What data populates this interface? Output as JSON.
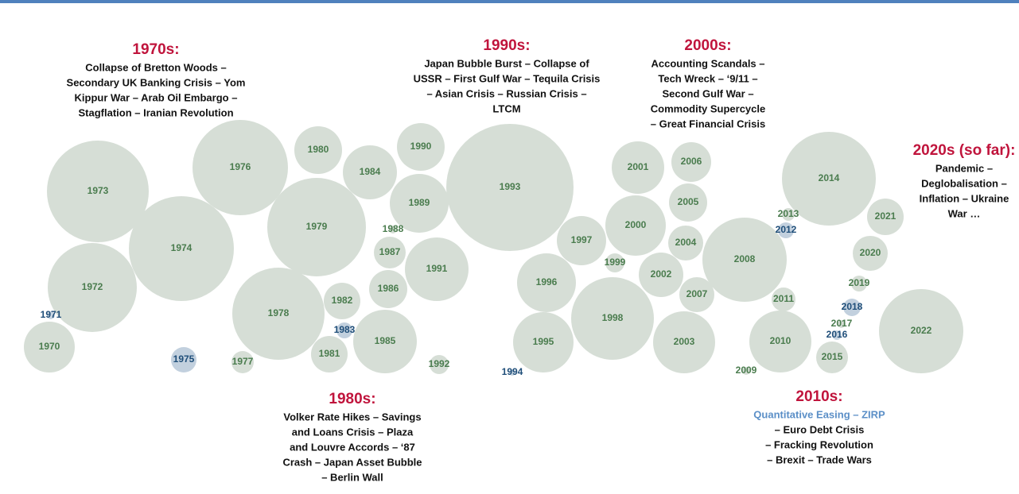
{
  "nodes": [
    {
      "label": "1970",
      "color": "#d6ded6",
      "text_color": "#4a7c4e"
    },
    {
      "label": "1971",
      "color": "#c9d6e2",
      "text_color": "#1f4e79"
    },
    {
      "label": "1972",
      "color": "#d6ded6",
      "text_color": "#4a7c4e"
    },
    {
      "label": "1973",
      "color": "#d6ded6",
      "text_color": "#4a7c4e"
    },
    {
      "label": "1974",
      "color": "#d6ded6",
      "text_color": "#4a7c4e"
    },
    {
      "label": "1975",
      "color": "#c2d0de",
      "text_color": "#1f4e79"
    },
    {
      "label": "1976",
      "color": "#d6ded6",
      "text_color": "#4a7c4e"
    },
    {
      "label": "1977",
      "color": "#d6ded6",
      "text_color": "#4a7c4e"
    },
    {
      "label": "1978",
      "color": "#d6ded6",
      "text_color": "#4a7c4e"
    },
    {
      "label": "1979",
      "color": "#d6ded6",
      "text_color": "#4a7c4e"
    },
    {
      "label": "1980",
      "color": "#d6ded6",
      "text_color": "#4a7c4e"
    },
    {
      "label": "1981",
      "color": "#d6ded6",
      "text_color": "#4a7c4e"
    },
    {
      "label": "1982",
      "color": "#d6ded6",
      "text_color": "#4a7c4e"
    },
    {
      "label": "1983",
      "color": "#c2d0de",
      "text_color": "#1f4e79"
    },
    {
      "label": "1984",
      "color": "#d6ded6",
      "text_color": "#4a7c4e"
    },
    {
      "label": "1985",
      "color": "#d6ded6",
      "text_color": "#4a7c4e"
    },
    {
      "label": "1986",
      "color": "#d6ded6",
      "text_color": "#4a7c4e"
    },
    {
      "label": "1987",
      "color": "#d6ded6",
      "text_color": "#4a7c4e"
    },
    {
      "label": "1988",
      "color": "#d6ded6",
      "text_color": "#4a7c4e"
    },
    {
      "label": "1989",
      "color": "#d6ded6",
      "text_color": "#4a7c4e"
    },
    {
      "label": "1990",
      "color": "#d6ded6",
      "text_color": "#4a7c4e"
    },
    {
      "label": "1991",
      "color": "#d6ded6",
      "text_color": "#4a7c4e"
    },
    {
      "label": "1992",
      "color": "#d6ded6",
      "text_color": "#4a7c4e"
    },
    {
      "label": "1993",
      "color": "#d6ded6",
      "text_color": "#4a7c4e"
    },
    {
      "label": "1994",
      "color": "#c9d6e2",
      "text_color": "#1f4e79"
    },
    {
      "label": "1995",
      "color": "#d6ded6",
      "text_color": "#4a7c4e"
    },
    {
      "label": "1996",
      "color": "#d6ded6",
      "text_color": "#4a7c4e"
    },
    {
      "label": "1997",
      "color": "#d6ded6",
      "text_color": "#4a7c4e"
    },
    {
      "label": "1998",
      "color": "#d6ded6",
      "text_color": "#4a7c4e"
    },
    {
      "label": "1999",
      "color": "#d6ded6",
      "text_color": "#4a7c4e"
    },
    {
      "label": "2000",
      "color": "#d6ded6",
      "text_color": "#4a7c4e"
    },
    {
      "label": "2001",
      "color": "#d6ded6",
      "text_color": "#4a7c4e"
    },
    {
      "label": "2002",
      "color": "#d6ded6",
      "text_color": "#4a7c4e"
    },
    {
      "label": "2003",
      "color": "#d6ded6",
      "text_color": "#4a7c4e"
    },
    {
      "label": "2004",
      "color": "#d6ded6",
      "text_color": "#4a7c4e"
    },
    {
      "label": "2005",
      "color": "#d6ded6",
      "text_color": "#4a7c4e"
    },
    {
      "label": "2006",
      "color": "#d6ded6",
      "text_color": "#4a7c4e"
    },
    {
      "label": "2007",
      "color": "#d6ded6",
      "text_color": "#4a7c4e"
    },
    {
      "label": "2008",
      "color": "#d6ded6",
      "text_color": "#4a7c4e"
    },
    {
      "label": "2009",
      "color": "#d6ded6",
      "text_color": "#4a7c4e"
    },
    {
      "label": "2010",
      "color": "#d6ded6",
      "text_color": "#4a7c4e"
    },
    {
      "label": "2011",
      "color": "#d6ded6",
      "text_color": "#4a7c4e"
    },
    {
      "label": "2012",
      "color": "#c2d0de",
      "text_color": "#1f4e79"
    },
    {
      "label": "2013",
      "color": "#d6ded6",
      "text_color": "#4a7c4e"
    },
    {
      "label": "2014",
      "color": "#d6ded6",
      "text_color": "#4a7c4e"
    },
    {
      "label": "2015",
      "color": "#d6ded6",
      "text_color": "#4a7c4e"
    },
    {
      "label": "2016",
      "color": "#c9d6e2",
      "text_color": "#1f4e79"
    },
    {
      "label": "2017",
      "color": "#d6ded6",
      "text_color": "#4a7c4e"
    },
    {
      "label": "2018",
      "color": "#c2d0de",
      "text_color": "#1f4e79"
    },
    {
      "label": "2019",
      "color": "#d6ded6",
      "text_color": "#4a7c4e"
    },
    {
      "label": "2020",
      "color": "#d6ded6",
      "text_color": "#4a7c4e"
    },
    {
      "label": "2021",
      "color": "#d6ded6",
      "text_color": "#4a7c4e"
    },
    {
      "label": "2022",
      "color": "#d6ded6",
      "text_color": "#4a7c4e"
    }
  ],
  "decades": [
    {
      "title": "1970s:",
      "lines": [
        "Collapse of Bretton Woods –",
        "Secondary UK Banking Crisis – Yom",
        "Kippur War – Arab Oil Embargo –",
        "Stagflation – Iranian Revolution"
      ]
    },
    {
      "title": "1980s:",
      "lines": [
        "Volker Rate Hikes – Savings",
        "and Loans Crisis – Plaza",
        "and Louvre Accords – ‘87",
        "Crash – Japan Asset Bubble",
        "– Berlin Wall"
      ]
    },
    {
      "title": "1990s:",
      "lines": [
        "Japan Bubble Burst – Collapse of",
        "USSR – First Gulf War – Tequila Crisis",
        "– Asian Crisis – Russian  Crisis –",
        "LTCM"
      ]
    },
    {
      "title": "2000s:",
      "lines": [
        "Accounting Scandals –",
        "Tech Wreck – ‘9/11 –",
        "Second Gulf War –",
        "Commodity Supercycle",
        "– Great Financial Crisis"
      ]
    },
    {
      "title": "2010s:",
      "highlight": "Quantitative Easing – ZIRP",
      "lines": [
        "– Euro Debt Crisis",
        "– Fracking Revolution",
        "– Brexit – Trade Wars"
      ]
    },
    {
      "title": "2020s (so far):",
      "lines": [
        "Pandemic –",
        "Deglobalisation –",
        "Inflation – Ukraine",
        "War …"
      ]
    }
  ]
}
